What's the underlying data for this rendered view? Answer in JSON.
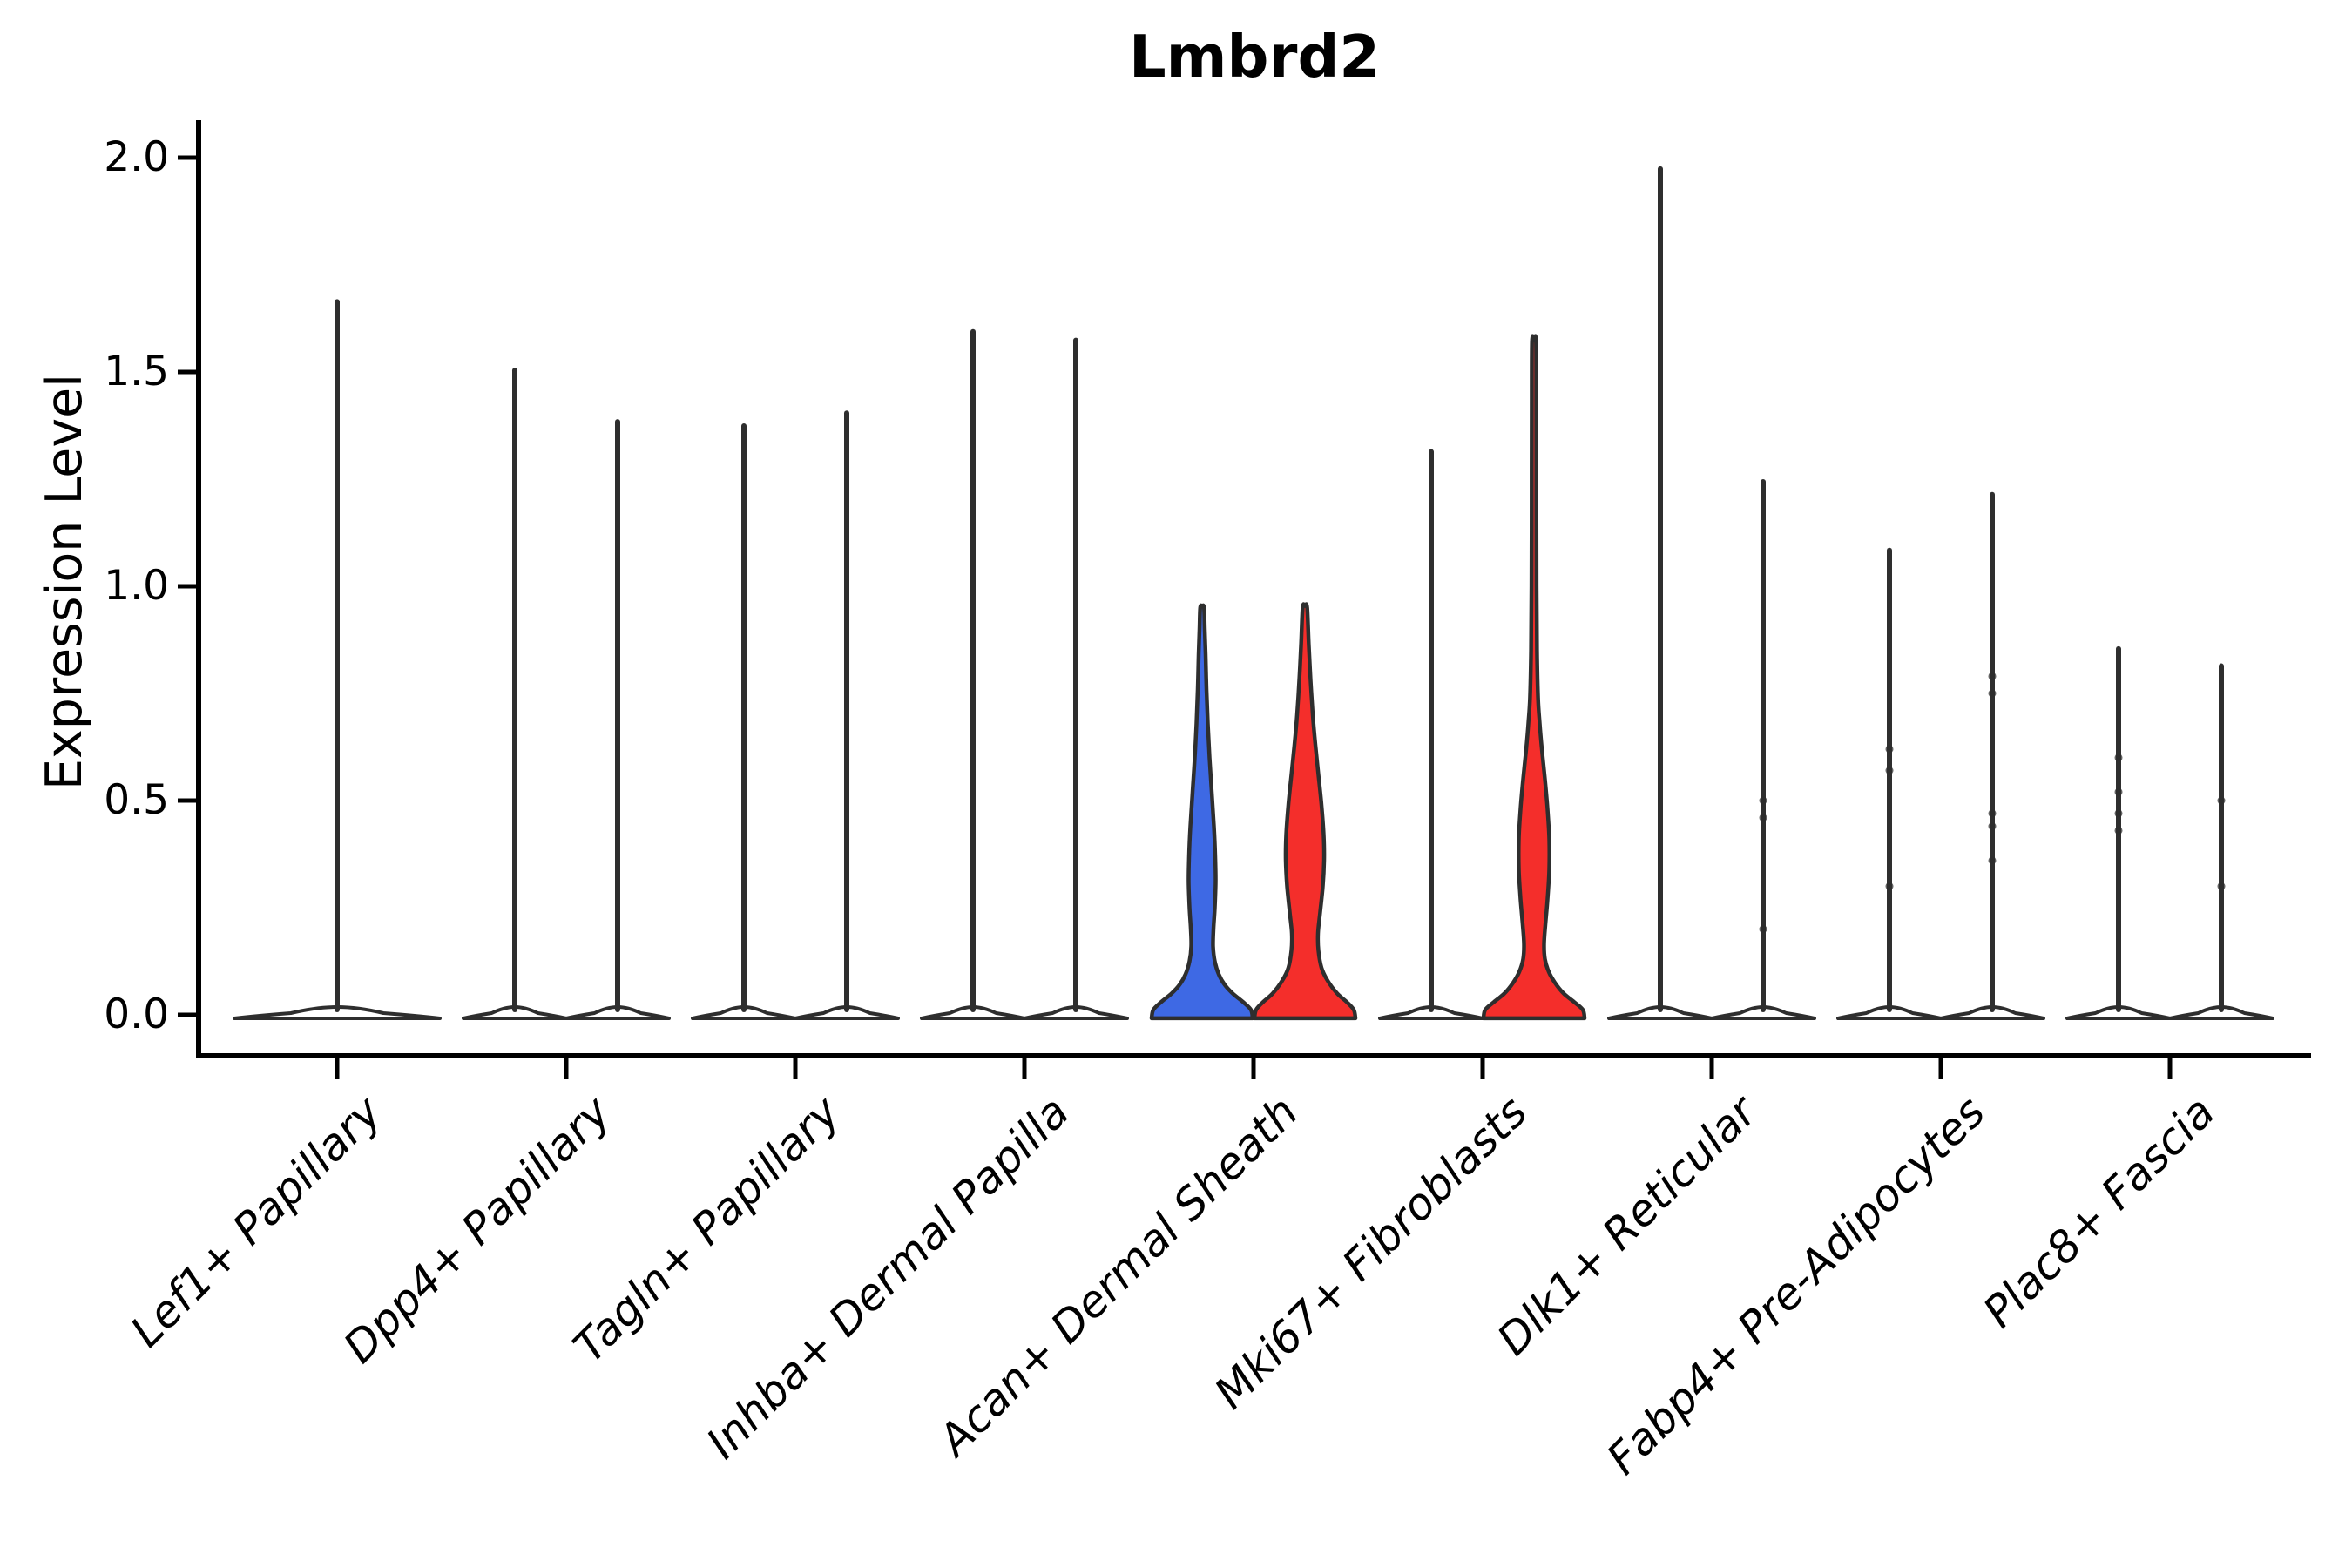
{
  "chart_data": {
    "type": "violin",
    "title": "Lmbrd2",
    "ylabel": "Expression Level",
    "yticks": [
      {
        "label": "0.0",
        "value": 0.0
      },
      {
        "label": "0.5",
        "value": 0.5
      },
      {
        "label": "1.0",
        "value": 1.0
      },
      {
        "label": "1.5",
        "value": 1.5
      },
      {
        "label": "2.0",
        "value": 2.0
      }
    ],
    "ylim": [
      -0.09,
      2.09
    ],
    "grid": false,
    "legend": "none",
    "categories": [
      "Lef1+ Papillary",
      "Dpp4+ Papillary",
      "Tagln+ Papillary",
      "Inhba+ Dermal Papilla",
      "Acan+ Dermal Sheath",
      "Mki67+ Fibroblasts",
      "Dlk1+ Reticular",
      "Fabp4+ Pre-Adipocytes",
      "Plac8+ Fascia"
    ],
    "colors": {
      "blue_fill": "#3E69E4",
      "red_fill": "#F42E2B",
      "violin_outline": "#2E2E2E",
      "axis": "#000000",
      "background": "#FFFFFF"
    },
    "violins": [
      {
        "category": 0,
        "slot": "full",
        "fill": "#FFFFFF",
        "max": 1.67,
        "points": []
      },
      {
        "category": 1,
        "slot": "left",
        "fill": "#FFFFFF",
        "max": 1.51,
        "points": []
      },
      {
        "category": 1,
        "slot": "right",
        "fill": "#FFFFFF",
        "max": 1.39,
        "points": []
      },
      {
        "category": 2,
        "slot": "left",
        "fill": "#FFFFFF",
        "max": 1.38,
        "points": []
      },
      {
        "category": 2,
        "slot": "right",
        "fill": "#FFFFFF",
        "max": 1.41,
        "points": []
      },
      {
        "category": 3,
        "slot": "left",
        "fill": "#FFFFFF",
        "max": 1.6,
        "points": []
      },
      {
        "category": 3,
        "slot": "right",
        "fill": "#FFFFFF",
        "max": 1.58,
        "points": []
      },
      {
        "category": 4,
        "slot": "left",
        "fill": "#3E69E4",
        "max": 0.95,
        "points": [],
        "profile": [
          [
            -0.008,
            58
          ],
          [
            0.012,
            56
          ],
          [
            0.03,
            47
          ],
          [
            0.05,
            35
          ],
          [
            0.07,
            26
          ],
          [
            0.095,
            19
          ],
          [
            0.125,
            14.5
          ],
          [
            0.16,
            12.5
          ],
          [
            0.2,
            13
          ],
          [
            0.25,
            14.5
          ],
          [
            0.31,
            15.5
          ],
          [
            0.37,
            15
          ],
          [
            0.44,
            13.5
          ],
          [
            0.52,
            11
          ],
          [
            0.6,
            8.5
          ],
          [
            0.68,
            6.5
          ],
          [
            0.76,
            5
          ],
          [
            0.84,
            4
          ],
          [
            0.9,
            3
          ],
          [
            0.95,
            2.2
          ]
        ]
      },
      {
        "category": 4,
        "slot": "right",
        "fill": "#F42E2B",
        "max": 0.95,
        "points": [],
        "profile": [
          [
            -0.008,
            58
          ],
          [
            0.012,
            56
          ],
          [
            0.03,
            48
          ],
          [
            0.05,
            37
          ],
          [
            0.08,
            26
          ],
          [
            0.11,
            19
          ],
          [
            0.15,
            15.5
          ],
          [
            0.19,
            15
          ],
          [
            0.24,
            17.5
          ],
          [
            0.3,
            20.5
          ],
          [
            0.36,
            22
          ],
          [
            0.42,
            21.5
          ],
          [
            0.49,
            19
          ],
          [
            0.56,
            15.5
          ],
          [
            0.63,
            12
          ],
          [
            0.7,
            9
          ],
          [
            0.78,
            6.5
          ],
          [
            0.86,
            4.5
          ],
          [
            0.95,
            2.6
          ]
        ]
      },
      {
        "category": 5,
        "slot": "left",
        "fill": "#FFFFFF",
        "max": 1.32,
        "points": []
      },
      {
        "category": 5,
        "slot": "right",
        "fill": "#F42E2B",
        "max": 1.57,
        "points": [],
        "profile": [
          [
            -0.008,
            58
          ],
          [
            0.012,
            56
          ],
          [
            0.03,
            46
          ],
          [
            0.05,
            34
          ],
          [
            0.075,
            24
          ],
          [
            0.1,
            17
          ],
          [
            0.13,
            12.5
          ],
          [
            0.165,
            11.5
          ],
          [
            0.21,
            13
          ],
          [
            0.27,
            15.5
          ],
          [
            0.34,
            17.5
          ],
          [
            0.41,
            17.5
          ],
          [
            0.48,
            15.5
          ],
          [
            0.55,
            12.5
          ],
          [
            0.62,
            9
          ],
          [
            0.68,
            6.5
          ],
          [
            0.74,
            4.6
          ],
          [
            0.85,
            3.4
          ],
          [
            1.0,
            2.9
          ],
          [
            1.2,
            2.7
          ],
          [
            1.4,
            2.6
          ],
          [
            1.57,
            2.3
          ]
        ]
      },
      {
        "category": 6,
        "slot": "left",
        "fill": "#FFFFFF",
        "max": 1.98,
        "points": []
      },
      {
        "category": 6,
        "slot": "right",
        "fill": "#FFFFFF",
        "max": 1.25,
        "points": [
          0.5,
          0.46,
          0.2
        ]
      },
      {
        "category": 7,
        "slot": "left",
        "fill": "#FFFFFF",
        "max": 1.09,
        "points": [
          0.62,
          0.57,
          0.3
        ]
      },
      {
        "category": 7,
        "slot": "right",
        "fill": "#FFFFFF",
        "max": 1.22,
        "points": [
          0.79,
          0.75,
          0.47,
          0.44,
          0.36
        ]
      },
      {
        "category": 8,
        "slot": "left",
        "fill": "#FFFFFF",
        "max": 0.86,
        "points": [
          0.6,
          0.52,
          0.47,
          0.43
        ]
      },
      {
        "category": 8,
        "slot": "right",
        "fill": "#FFFFFF",
        "max": 0.82,
        "points": [
          0.5,
          0.3
        ]
      }
    ]
  }
}
